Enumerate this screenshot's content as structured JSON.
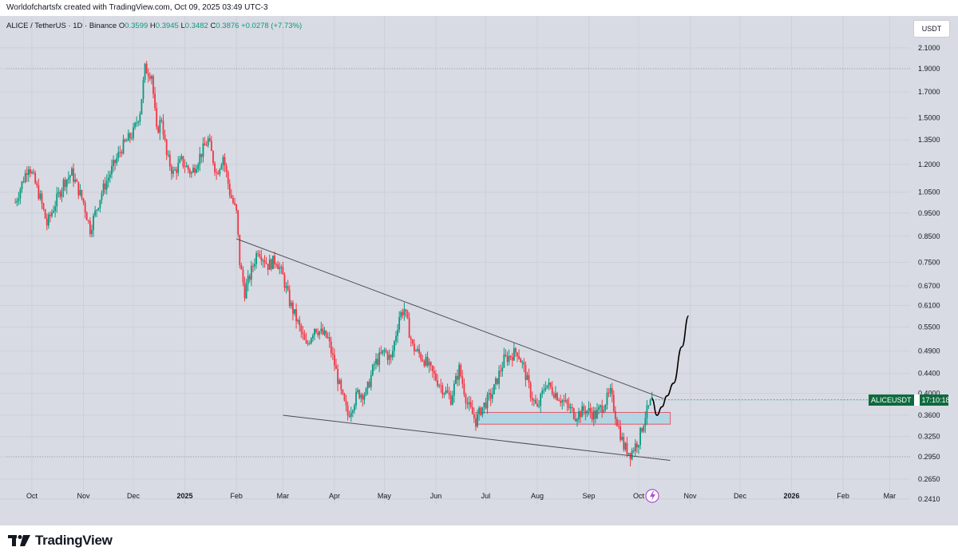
{
  "header": {
    "attribution": "Worldofchartsfx created with TradingView.com, Oct 09, 2025 03:49 UTC-3"
  },
  "symbol_line": {
    "symbol": "ALICE / TetherUS · 1D · Binance",
    "open_label": "O",
    "open": "0.3599",
    "high_label": "H",
    "high": "0.3945",
    "low_label": "L",
    "low": "0.3482",
    "close_label": "C",
    "close": "0.3876",
    "change": "+0.0278 (+7.73%)"
  },
  "currency_button": "USDT",
  "price_label": {
    "ticker": "ALICEUSDT",
    "countdown": "17:10:18"
  },
  "footer": {
    "brand": "TradingView",
    "logo_icon": "tradingview-logo-icon"
  },
  "colors": {
    "up": "#089981",
    "down": "#f23645",
    "background": "#d8dbe3",
    "zone": "#a8d4e4",
    "zone_border": "#e05a6a"
  },
  "chart_data": {
    "type": "candlestick",
    "scale": "log",
    "y_ticks": [
      "2.1000",
      "1.9000",
      "1.7000",
      "1.5000",
      "1.3500",
      "1.2000",
      "1.0500",
      "0.9500",
      "0.8500",
      "0.7500",
      "0.6700",
      "0.6100",
      "0.5500",
      "0.4900",
      "0.4400",
      "0.4000",
      "0.3600",
      "0.3250",
      "0.2950",
      "0.2650",
      "0.2410"
    ],
    "x_ticks": [
      "Oct",
      "Nov",
      "Dec",
      "2025",
      "Feb",
      "Mar",
      "Apr",
      "May",
      "Jun",
      "Jul",
      "Aug",
      "Sep",
      "Oct",
      "Nov",
      "Dec",
      "2026",
      "Feb",
      "Mar"
    ],
    "x_dates": [
      "2024-10-01",
      "2024-11-01",
      "2024-12-01",
      "2025-01-01",
      "2025-02-01",
      "2025-03-01",
      "2025-04-01",
      "2025-05-01",
      "2025-06-01",
      "2025-07-01",
      "2025-08-01",
      "2025-09-01",
      "2025-10-01",
      "2025-11-01",
      "2025-12-01",
      "2026-01-01",
      "2026-02-01",
      "2026-03-01"
    ],
    "price_path": [
      [
        "2024-09-21",
        1.0
      ],
      [
        "2024-09-29",
        1.2
      ],
      [
        "2024-10-06",
        1.02
      ],
      [
        "2024-10-10",
        0.9
      ],
      [
        "2024-10-20",
        1.1
      ],
      [
        "2024-10-25",
        1.15
      ],
      [
        "2024-11-01",
        1.0
      ],
      [
        "2024-11-05",
        0.88
      ],
      [
        "2024-11-12",
        1.05
      ],
      [
        "2024-11-17",
        1.15
      ],
      [
        "2024-11-24",
        1.3
      ],
      [
        "2024-12-01",
        1.4
      ],
      [
        "2024-12-05",
        1.55
      ],
      [
        "2024-12-08",
        1.9
      ],
      [
        "2024-12-12",
        1.85
      ],
      [
        "2024-12-15",
        1.4
      ],
      [
        "2024-12-18",
        1.5
      ],
      [
        "2024-12-21",
        1.25
      ],
      [
        "2024-12-25",
        1.15
      ],
      [
        "2024-12-30",
        1.22
      ],
      [
        "2025-01-05",
        1.15
      ],
      [
        "2025-01-10",
        1.25
      ],
      [
        "2025-01-15",
        1.35
      ],
      [
        "2025-01-20",
        1.15
      ],
      [
        "2025-01-24",
        1.25
      ],
      [
        "2025-01-28",
        1.05
      ],
      [
        "2025-02-01",
        0.95
      ],
      [
        "2025-02-03",
        0.75
      ],
      [
        "2025-02-06",
        0.65
      ],
      [
        "2025-02-10",
        0.72
      ],
      [
        "2025-02-14",
        0.8
      ],
      [
        "2025-02-20",
        0.74
      ],
      [
        "2025-02-25",
        0.76
      ],
      [
        "2025-03-01",
        0.7
      ],
      [
        "2025-03-05",
        0.62
      ],
      [
        "2025-03-10",
        0.56
      ],
      [
        "2025-03-15",
        0.5
      ],
      [
        "2025-03-20",
        0.55
      ],
      [
        "2025-03-28",
        0.52
      ],
      [
        "2025-04-01",
        0.46
      ],
      [
        "2025-04-05",
        0.4
      ],
      [
        "2025-04-09",
        0.36
      ],
      [
        "2025-04-15",
        0.4
      ],
      [
        "2025-04-20",
        0.4
      ],
      [
        "2025-04-25",
        0.46
      ],
      [
        "2025-05-01",
        0.49
      ],
      [
        "2025-05-05",
        0.47
      ],
      [
        "2025-05-10",
        0.58
      ],
      [
        "2025-05-13",
        0.6
      ],
      [
        "2025-05-18",
        0.5
      ],
      [
        "2025-05-25",
        0.47
      ],
      [
        "2025-05-30",
        0.44
      ],
      [
        "2025-06-05",
        0.41
      ],
      [
        "2025-06-10",
        0.39
      ],
      [
        "2025-06-15",
        0.45
      ],
      [
        "2025-06-20",
        0.38
      ],
      [
        "2025-06-25",
        0.35
      ],
      [
        "2025-06-28",
        0.37
      ],
      [
        "2025-07-05",
        0.4
      ],
      [
        "2025-07-12",
        0.47
      ],
      [
        "2025-07-20",
        0.49
      ],
      [
        "2025-07-24",
        0.45
      ],
      [
        "2025-07-28",
        0.4
      ],
      [
        "2025-08-01",
        0.37
      ],
      [
        "2025-08-06",
        0.42
      ],
      [
        "2025-08-12",
        0.4
      ],
      [
        "2025-08-18",
        0.38
      ],
      [
        "2025-08-24",
        0.36
      ],
      [
        "2025-08-30",
        0.37
      ],
      [
        "2025-09-05",
        0.36
      ],
      [
        "2025-09-10",
        0.38
      ],
      [
        "2025-09-14",
        0.4
      ],
      [
        "2025-09-18",
        0.35
      ],
      [
        "2025-09-22",
        0.31
      ],
      [
        "2025-09-26",
        0.3
      ],
      [
        "2025-10-01",
        0.32
      ],
      [
        "2025-10-05",
        0.36
      ],
      [
        "2025-10-09",
        0.3876
      ]
    ],
    "price_high": 1.9,
    "price_high_date": "2024-12-10",
    "price_low": 0.295,
    "price_low_date": "2025-09-26",
    "upper_trendline": [
      [
        "2025-02-01",
        0.84
      ],
      [
        "2025-10-16",
        0.39
      ]
    ],
    "lower_trendline": [
      [
        "2025-03-01",
        0.36
      ],
      [
        "2025-10-20",
        0.29
      ]
    ],
    "support_zone": {
      "from": "2025-06-25",
      "to": "2025-10-20",
      "top": 0.365,
      "bottom": 0.345
    },
    "projection": [
      [
        "2025-10-09",
        0.39
      ],
      [
        "2025-10-12",
        0.36
      ],
      [
        "2025-10-15",
        0.375
      ],
      [
        "2025-10-18",
        0.395
      ],
      [
        "2025-10-22",
        0.42
      ],
      [
        "2025-10-27",
        0.5
      ],
      [
        "2025-10-31",
        0.58
      ]
    ],
    "current_price_level": 0.3876
  }
}
